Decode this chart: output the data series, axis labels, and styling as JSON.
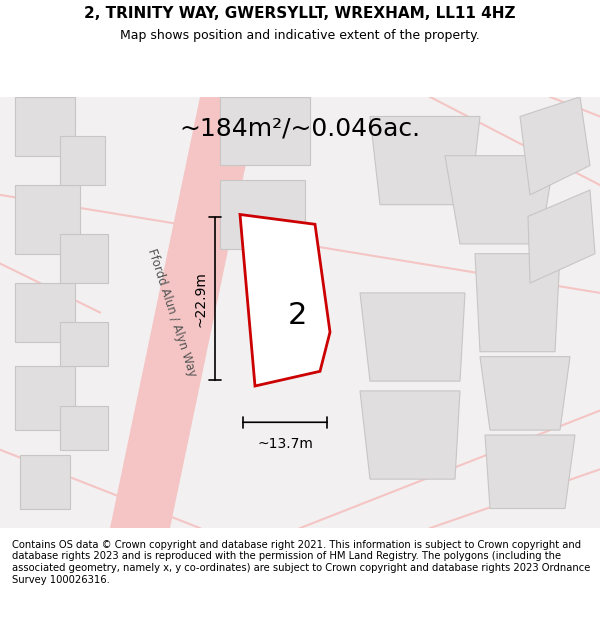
{
  "title": "2, TRINITY WAY, GWERSYLLT, WREXHAM, LL11 4HZ",
  "subtitle": "Map shows position and indicative extent of the property.",
  "area_text": "~184m²/~0.046ac.",
  "dim_height": "~22.9m",
  "dim_width": "~13.7m",
  "label_number": "2",
  "footer": "Contains OS data © Crown copyright and database right 2021. This information is subject to Crown copyright and database rights 2023 and is reproduced with the permission of HM Land Registry. The polygons (including the associated geometry, namely x, y co-ordinates) are subject to Crown copyright and database rights 2023 Ordnance Survey 100026316.",
  "bg_color": "#f0eeee",
  "map_bg": "#f0eeee",
  "road_color": "#f5c5c5",
  "building_fill": "#e0dede",
  "building_edge": "#c8c5c5",
  "red_plot_color": "#cc0000",
  "plot_fill": "#ffffff",
  "title_fontsize": 11,
  "subtitle_fontsize": 9,
  "area_fontsize": 18,
  "footer_fontsize": 7.2
}
